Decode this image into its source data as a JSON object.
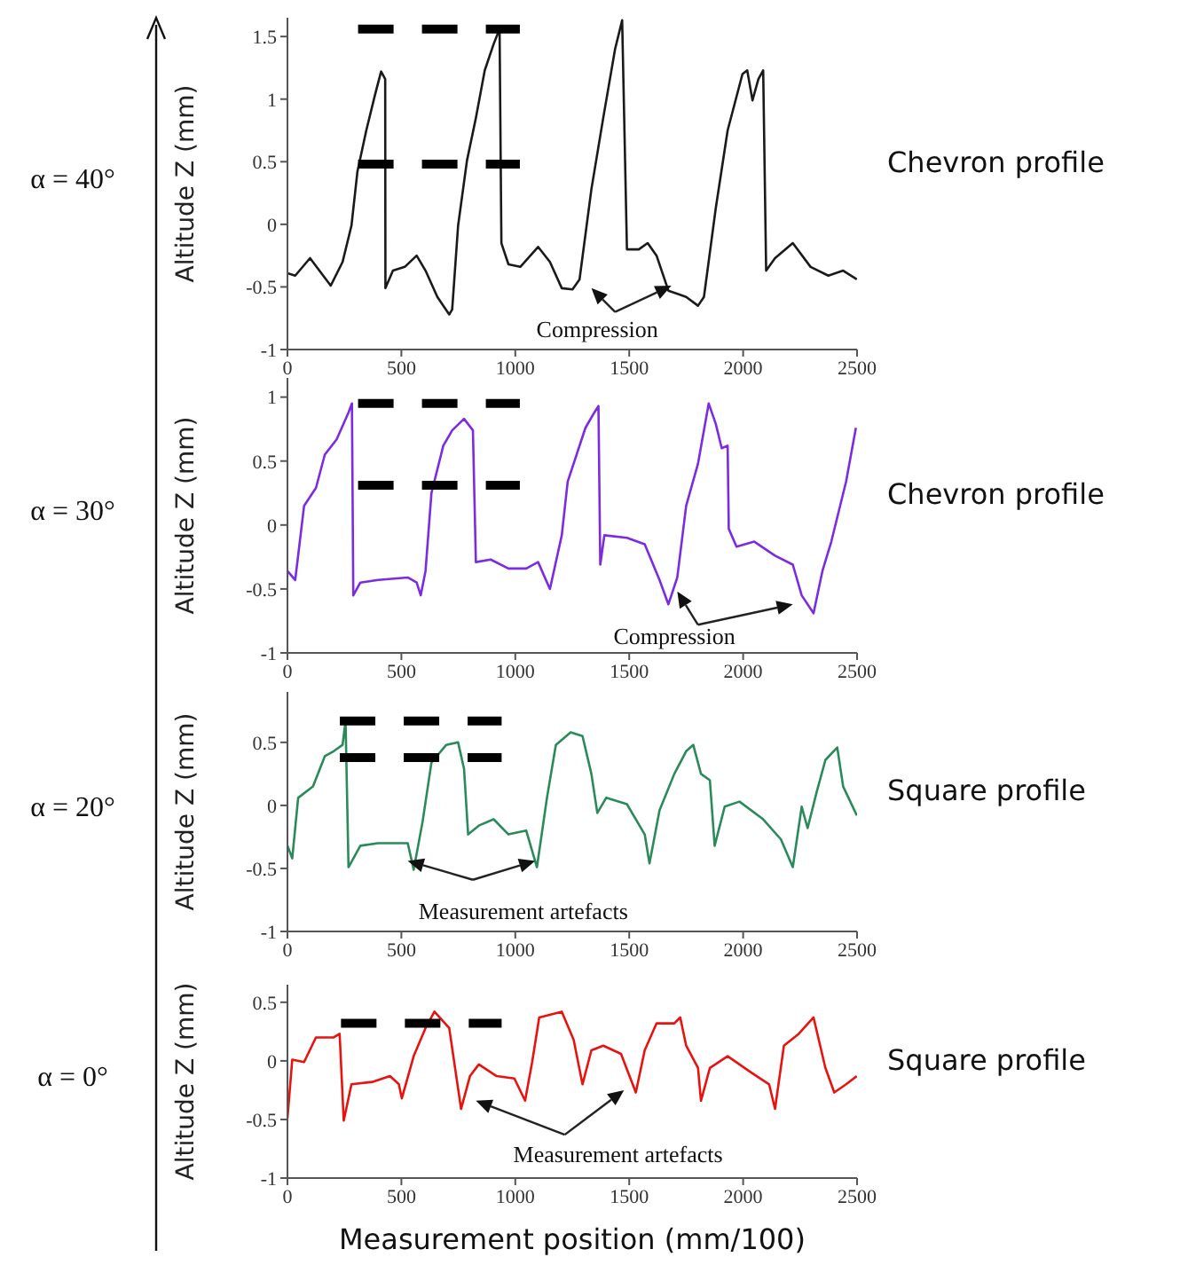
{
  "chart_data": [
    {
      "type": "line",
      "title": "Chevron profile",
      "subtitle": "α = 40°",
      "ylabel": "Altitude Z (mm)",
      "annotations": [
        "Compression"
      ],
      "xlim": [
        0,
        2500
      ],
      "xticks": [
        0,
        500,
        1000,
        1500,
        2000,
        2500
      ],
      "ylim": [
        -1,
        1.65
      ],
      "yticks": [
        -1,
        -0.5,
        0,
        0.5,
        1,
        1.5
      ],
      "series": [
        {
          "color": "#1a1a1a",
          "x": [
            0,
            34,
            99,
            190,
            242,
            281,
            307,
            346,
            385,
            411,
            429,
            430,
            463,
            515,
            567,
            606,
            658,
            710,
            723,
            749,
            788,
            827,
            866,
            905,
            931,
            939,
            970,
            1022,
            1100,
            1152,
            1204,
            1251,
            1282,
            1334,
            1386,
            1438,
            1469,
            1490,
            1542,
            1581,
            1620,
            1672,
            1750,
            1802,
            1828,
            1880,
            1932,
            1997,
            2018,
            2041,
            2067,
            2088,
            2101,
            2140,
            2218,
            2296,
            2374,
            2439,
            2499
          ],
          "values": [
            -0.39,
            -0.41,
            -0.27,
            -0.49,
            -0.3,
            -0.01,
            0.42,
            0.75,
            1.04,
            1.22,
            1.16,
            -0.51,
            -0.37,
            -0.34,
            -0.25,
            -0.37,
            -0.58,
            -0.72,
            -0.68,
            -0.01,
            0.51,
            0.85,
            1.23,
            1.44,
            1.56,
            -0.15,
            -0.32,
            -0.34,
            -0.18,
            -0.3,
            -0.51,
            -0.52,
            -0.44,
            0.28,
            0.85,
            1.4,
            1.63,
            -0.2,
            -0.2,
            -0.15,
            -0.25,
            -0.53,
            -0.58,
            -0.65,
            -0.58,
            0.13,
            0.75,
            1.2,
            1.23,
            0.99,
            1.16,
            1.23,
            -0.37,
            -0.27,
            -0.15,
            -0.34,
            -0.41,
            -0.37,
            -0.44
          ]
        },
        {
          "type": "line",
          "color": "#000000",
          "line_style": "dashed",
          "x": [
            310,
            1020
          ],
          "values": [
            1.56,
            1.56
          ]
        },
        {
          "type": "line",
          "color": "#000000",
          "line_style": "dashed",
          "x": [
            310,
            1020
          ],
          "values": [
            0.48,
            0.48
          ]
        }
      ]
    },
    {
      "type": "line",
      "title": "Chevron profile",
      "subtitle": "α = 30°",
      "ylabel": "Altitude Z (mm)",
      "annotations": [
        "Compression"
      ],
      "xlim": [
        0,
        2500
      ],
      "xticks": [
        0,
        500,
        1000,
        1500,
        2000,
        2500
      ],
      "ylim": [
        -1,
        1.15
      ],
      "yticks": [
        -1,
        -0.5,
        0,
        0.5,
        1
      ],
      "series": [
        {
          "color": "#7b2be0",
          "x": [
            0,
            34,
            73,
            125,
            164,
            216,
            268,
            283,
            289,
            320,
            398,
            528,
            567,
            585,
            606,
            632,
            684,
            723,
            775,
            814,
            827,
            892,
            970,
            1048,
            1100,
            1152,
            1204,
            1230,
            1308,
            1347,
            1365,
            1373,
            1391,
            1490,
            1568,
            1633,
            1672,
            1711,
            1750,
            1802,
            1849,
            1880,
            1906,
            1932,
            1937,
            1971,
            2049,
            2140,
            2218,
            2257,
            2309,
            2348,
            2387,
            2452,
            2495
          ],
          "values": [
            -0.36,
            -0.43,
            0.15,
            0.29,
            0.55,
            0.67,
            0.88,
            0.95,
            -0.55,
            -0.45,
            -0.43,
            -0.41,
            -0.45,
            -0.55,
            -0.36,
            0.25,
            0.62,
            0.74,
            0.83,
            0.74,
            -0.29,
            -0.27,
            -0.34,
            -0.34,
            -0.29,
            -0.5,
            -0.08,
            0.34,
            0.76,
            0.88,
            0.93,
            -0.31,
            -0.08,
            -0.1,
            -0.15,
            -0.43,
            -0.62,
            -0.41,
            0.15,
            0.48,
            0.95,
            0.79,
            0.6,
            0.62,
            -0.03,
            -0.17,
            -0.13,
            -0.24,
            -0.31,
            -0.55,
            -0.69,
            -0.36,
            -0.13,
            0.34,
            0.76
          ]
        },
        {
          "type": "line",
          "color": "#000000",
          "line_style": "dashed",
          "x": [
            310,
            1020
          ],
          "values": [
            0.95,
            0.95
          ]
        },
        {
          "type": "line",
          "color": "#000000",
          "line_style": "dashed",
          "x": [
            310,
            1020
          ],
          "values": [
            0.31,
            0.31
          ]
        }
      ]
    },
    {
      "type": "line",
      "title": "Square profile",
      "subtitle": "α = 20°",
      "ylabel": "Altitude Z (mm)",
      "annotations": [
        "Measurement artefacts"
      ],
      "xlim": [
        0,
        2500
      ],
      "xticks": [
        0,
        500,
        1000,
        1500,
        2000,
        2500
      ],
      "ylim": [
        -1,
        0.9
      ],
      "yticks": [
        -1,
        -0.5,
        0,
        0.5
      ],
      "series": [
        {
          "color": "#2a8a5a",
          "x": [
            0,
            21,
            47,
            112,
            164,
            203,
            242,
            255,
            268,
            320,
            398,
            528,
            554,
            593,
            632,
            697,
            749,
            775,
            793,
            840,
            905,
            970,
            1048,
            1095,
            1139,
            1178,
            1243,
            1295,
            1334,
            1360,
            1399,
            1490,
            1568,
            1589,
            1633,
            1698,
            1750,
            1781,
            1815,
            1854,
            1875,
            1919,
            1984,
            2088,
            2166,
            2218,
            2257,
            2283,
            2322,
            2361,
            2413,
            2439,
            2499
          ],
          "values": [
            -0.32,
            -0.42,
            0.06,
            0.15,
            0.39,
            0.43,
            0.48,
            0.67,
            -0.49,
            -0.32,
            -0.3,
            -0.3,
            -0.51,
            -0.13,
            0.34,
            0.48,
            0.5,
            0.29,
            -0.23,
            -0.16,
            -0.11,
            -0.23,
            -0.2,
            -0.49,
            0.06,
            0.48,
            0.58,
            0.55,
            0.25,
            -0.06,
            0.06,
            0.01,
            -0.23,
            -0.46,
            -0.04,
            0.25,
            0.43,
            0.48,
            0.25,
            0.2,
            -0.32,
            -0.01,
            0.03,
            -0.11,
            -0.27,
            -0.49,
            -0.01,
            -0.18,
            0.1,
            0.36,
            0.46,
            0.15,
            -0.08
          ]
        },
        {
          "type": "line",
          "color": "#000000",
          "line_style": "dashed",
          "x": [
            230,
            940
          ],
          "values": [
            0.67,
            0.67
          ]
        },
        {
          "type": "line",
          "color": "#000000",
          "line_style": "dashed",
          "x": [
            230,
            940
          ],
          "values": [
            0.38,
            0.38
          ]
        }
      ]
    },
    {
      "type": "line",
      "title": "Square profile",
      "subtitle": "α = 0°",
      "xlabel": "Measurement position (mm/100)",
      "ylabel": "Altitude Z (mm)",
      "annotations": [
        "Measurement artefacts"
      ],
      "xlim": [
        0,
        2500
      ],
      "xticks": [
        0,
        500,
        1000,
        1500,
        2000,
        2500
      ],
      "ylim": [
        -1,
        0.65
      ],
      "yticks": [
        -1,
        -0.5,
        0,
        0.5
      ],
      "series": [
        {
          "color": "#e8120f",
          "x": [
            0,
            21,
            73,
            125,
            203,
            229,
            247,
            281,
            372,
            450,
            489,
            502,
            554,
            606,
            645,
            710,
            762,
            801,
            840,
            918,
            996,
            1043,
            1074,
            1105,
            1204,
            1256,
            1295,
            1334,
            1386,
            1464,
            1529,
            1568,
            1620,
            1698,
            1724,
            1750,
            1802,
            1815,
            1854,
            1932,
            2036,
            2114,
            2140,
            2179,
            2244,
            2309,
            2361,
            2400,
            2452,
            2499
          ],
          "values": [
            -0.49,
            0.01,
            -0.01,
            0.2,
            0.2,
            0.23,
            -0.51,
            -0.2,
            -0.18,
            -0.13,
            -0.2,
            -0.32,
            0.04,
            0.28,
            0.42,
            0.28,
            -0.41,
            -0.13,
            -0.03,
            -0.13,
            -0.15,
            -0.34,
            -0.01,
            0.37,
            0.42,
            0.18,
            -0.2,
            0.09,
            0.13,
            0.06,
            -0.27,
            0.09,
            0.32,
            0.32,
            0.37,
            0.13,
            -0.06,
            -0.34,
            -0.06,
            0.04,
            -0.1,
            -0.2,
            -0.41,
            0.13,
            0.23,
            0.37,
            -0.06,
            -0.27,
            -0.2,
            -0.13
          ]
        },
        {
          "type": "line",
          "color": "#000000",
          "line_style": "dashed",
          "x": [
            235,
            940
          ],
          "values": [
            0.32,
            0.32
          ]
        }
      ]
    }
  ]
}
